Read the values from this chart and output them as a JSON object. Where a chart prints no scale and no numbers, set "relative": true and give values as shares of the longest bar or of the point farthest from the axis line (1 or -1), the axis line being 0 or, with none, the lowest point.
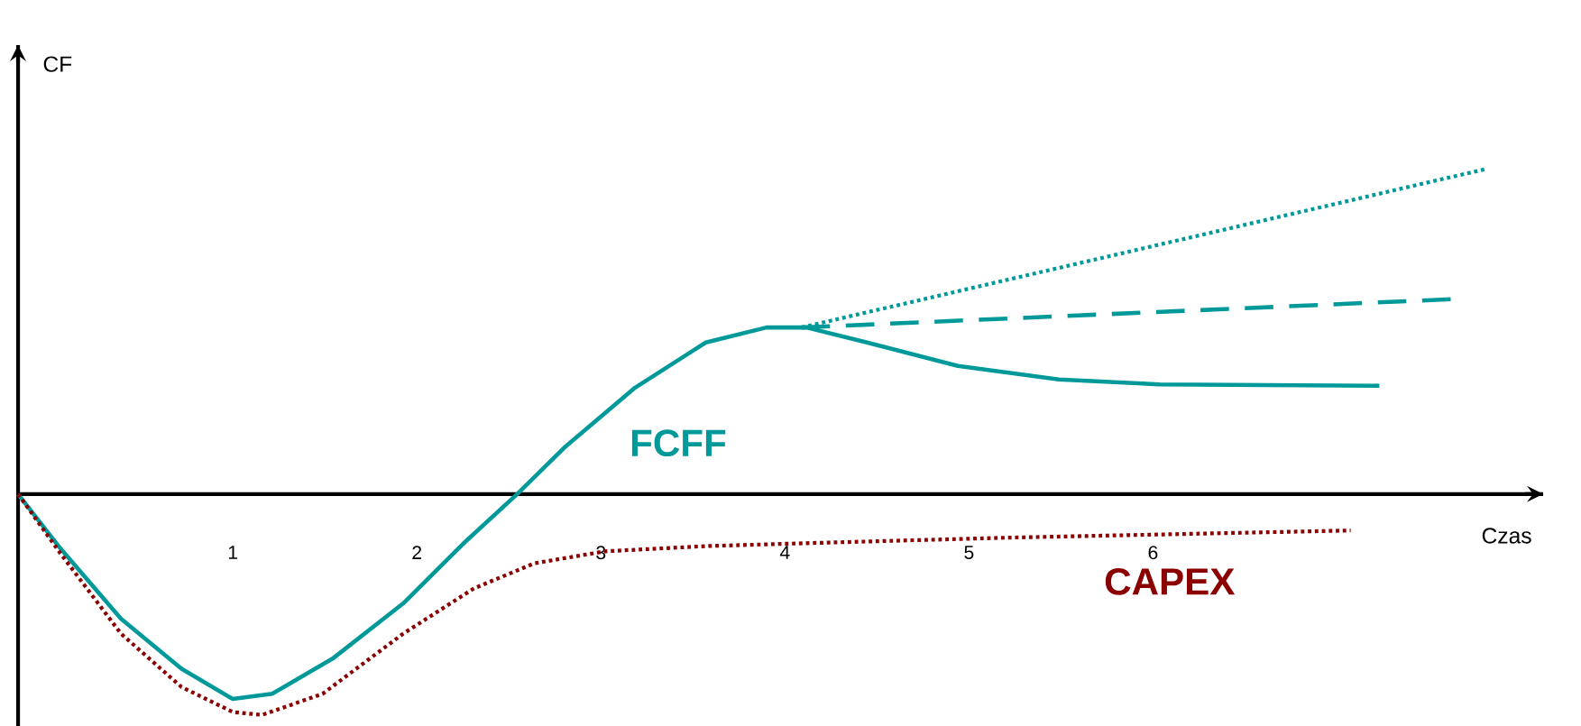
{
  "chart_data": {
    "type": "line",
    "relative": true,
    "xlabel": "Czas",
    "ylabel": "CF",
    "xlim": [
      -0.167,
      8.12
    ],
    "xticks": [
      1,
      2,
      3,
      4,
      5,
      6
    ],
    "series": [
      {
        "name": "FCFF",
        "color": "#009999",
        "line_style": "solid",
        "x": [
          -0.167,
          0.063,
          0.392,
          0.721,
          1,
          1.214,
          1.542,
          1.926,
          2.255,
          2.545,
          2.8,
          3.186,
          3.57,
          3.9,
          4.117,
          4.446,
          4.94,
          5.488,
          6.036,
          7.23
        ],
        "values": [
          0,
          -0.167,
          -0.383,
          -0.537,
          -0.63,
          -0.614,
          -0.506,
          -0.336,
          -0.151,
          0,
          0.142,
          0.327,
          0.466,
          0.512,
          0.512,
          0.466,
          0.394,
          0.352,
          0.337,
          0.333
        ]
      },
      {
        "color": "#009999",
        "line_style": "dashed",
        "x": [
          4.09,
          7.625
        ],
        "values": [
          0.512,
          0.599
        ]
      },
      {
        "color": "#009999",
        "line_style": "dotted",
        "x": [
          4.09,
          7.816
        ],
        "values": [
          0.512,
          1.0
        ]
      },
      {
        "name": "CAPEX",
        "color": "#8b0000",
        "line_style": "dotted",
        "x": [
          -0.167,
          0.063,
          0.392,
          0.721,
          1,
          1.159,
          1.488,
          1.926,
          2.31,
          2.638,
          3.022,
          3.57,
          4.117,
          5.213,
          7.074
        ],
        "values": [
          0,
          -0.182,
          -0.429,
          -0.593,
          -0.67,
          -0.679,
          -0.614,
          -0.429,
          -0.29,
          -0.213,
          -0.176,
          -0.16,
          -0.151,
          -0.134,
          -0.112
        ]
      }
    ]
  }
}
